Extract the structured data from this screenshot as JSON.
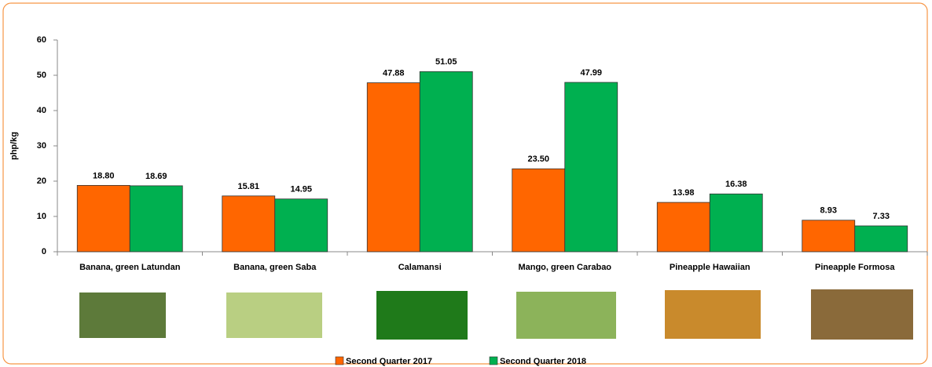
{
  "chart_data": {
    "type": "bar",
    "y_label": "php/kg",
    "categories": [
      "Banana, green Latundan",
      "Banana, green Saba",
      "Calamansi",
      "Mango, green Carabao",
      "Pineapple Hawaiian",
      "Pineapple Formosa"
    ],
    "series": [
      {
        "name": "Second Quarter 2017",
        "color": "#ff6600",
        "values": [
          18.8,
          15.81,
          47.88,
          23.5,
          13.98,
          8.93
        ],
        "value_labels": [
          "18.80",
          "15.81",
          "47.88",
          "23.50",
          "13.98",
          "8.93"
        ]
      },
      {
        "name": "Second Quarter 2018",
        "color": "#00b050",
        "values": [
          18.69,
          14.95,
          51.05,
          47.99,
          16.38,
          7.33
        ],
        "value_labels": [
          "18.69",
          "14.95",
          "51.05",
          "47.99",
          "16.38",
          "7.33"
        ]
      }
    ],
    "ylim": [
      0,
      60
    ],
    "yticks": [
      0,
      10,
      20,
      30,
      40,
      50,
      60
    ],
    "grid": false,
    "legend": "bottom"
  }
}
